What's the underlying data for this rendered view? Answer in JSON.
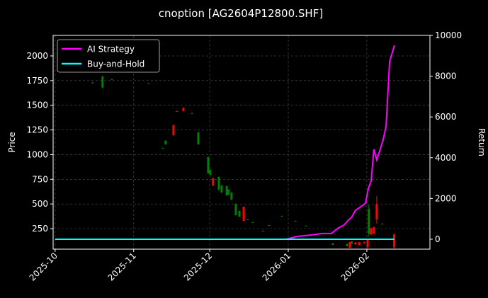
{
  "chart_data": {
    "type": "candlestick",
    "title": "cnoption [AG2604P12800.SHF]",
    "ylabel": "Price",
    "y2label": "Return",
    "x": [
      14.8,
      18.7,
      22.4,
      36.9,
      42.5,
      43.6,
      46.7,
      48.0,
      50.6,
      54.0,
      56.5,
      60.4,
      61.2,
      62.3,
      64.6,
      65.7,
      67.7,
      68.5,
      69.6,
      71.3,
      72.7,
      74.4,
      76.0,
      78.0,
      82.0,
      84.4,
      89.5,
      94.8,
      99.0,
      109.6,
      115.2,
      116.3,
      117.0,
      118.5,
      120.0,
      122.0,
      123.3,
      123.8,
      124.7,
      125.8,
      126.9,
      129.0,
      133.8
    ],
    "open": [
      1730,
      1790,
      1765,
      1722,
      1068,
      1140,
      1197,
      1440,
      1440,
      1420,
      1225,
      974,
      845,
      688,
      774,
      687,
      680,
      645,
      616,
      501,
      429,
      329,
      343,
      315,
      228,
      286,
      379,
      329,
      279,
      100,
      95,
      56,
      120,
      90,
      85,
      100,
      60,
      450,
      190,
      200,
      343,
      300,
      60
    ],
    "high": [
      1735,
      1800,
      1768,
      1725,
      1072,
      1145,
      1305,
      1445,
      1478,
      1425,
      1230,
      980,
      850,
      765,
      780,
      690,
      685,
      650,
      620,
      505,
      432,
      475,
      346,
      318,
      231,
      289,
      382,
      332,
      282,
      102,
      98,
      116,
      122,
      112,
      115,
      118,
      140,
      487,
      260,
      270,
      580,
      305,
      200
    ],
    "low": [
      1720,
      1670,
      1758,
      1715,
      1062,
      1100,
      1190,
      1435,
      1438,
      1415,
      1100,
      805,
      790,
      680,
      640,
      612,
      583,
      590,
      540,
      382,
      368,
      325,
      340,
      312,
      225,
      283,
      376,
      326,
      276,
      84,
      70,
      52,
      93,
      88,
      80,
      98,
      55,
      170,
      185,
      195,
      300,
      296,
      50
    ],
    "close": [
      1725,
      1680,
      1760,
      1718,
      1065,
      1105,
      1300,
      1442,
      1475,
      1418,
      1104,
      809,
      795,
      760,
      645,
      616,
      587,
      594,
      544,
      386,
      372,
      472,
      342,
      314,
      227,
      285,
      378,
      328,
      278,
      85,
      72,
      114,
      95,
      110,
      112,
      116,
      135,
      200,
      255,
      265,
      500,
      298,
      190
    ],
    "up_color": "#ff0000",
    "down_color": "#008000",
    "series": [
      {
        "name": "AI Strategy",
        "color": "#ff00ff",
        "axis": "y2",
        "x": [
          0,
          91,
          95.6,
          101,
          105.4,
          109,
          111.8,
          114,
          115.7,
          117,
          118.5,
          120.2,
          122.5,
          123.6,
          124.7,
          125.8,
          126.9,
          128,
          129.4,
          130.6,
          132,
          133.9
        ],
        "values": [
          0,
          0,
          140,
          210,
          280,
          280,
          555,
          695,
          940,
          1075,
          1425,
          1560,
          1770,
          2500,
          2850,
          4410,
          3890,
          4305,
          4860,
          5555,
          8715,
          9515
        ]
      },
      {
        "name": "Buy-and-Hold",
        "color": "#00ffff",
        "axis": "y2",
        "x": [
          0,
          30,
          60,
          90,
          120,
          133.9
        ],
        "values": [
          0,
          0,
          0,
          0,
          0,
          0
        ]
      }
    ],
    "xlim": [
      -0.8,
      147.9
    ],
    "xticks": [
      {
        "value": 0,
        "label": "2025-10"
      },
      {
        "value": 31,
        "label": "2025-11"
      },
      {
        "value": 61,
        "label": "2025-12"
      },
      {
        "value": 92,
        "label": "2026-01"
      },
      {
        "value": 123,
        "label": "2026-02"
      }
    ],
    "ylim": [
      42,
      2208
    ],
    "yticks": [
      250,
      500,
      750,
      1000,
      1250,
      1500,
      1750,
      2000
    ],
    "y2lim": [
      -486,
      10000
    ],
    "y2ticks": [
      0,
      2000,
      4000,
      6000,
      8000,
      10000
    ],
    "grid": true,
    "legend": "upper left"
  }
}
